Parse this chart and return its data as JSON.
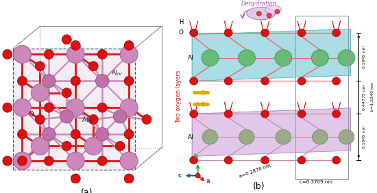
{
  "fig_width": 5.5,
  "fig_height": 2.82,
  "dpi": 100,
  "bg_color": "#ffffff",
  "panel_a": {
    "label": "(a)",
    "Al_color": "#cc88bb",
    "O_color": "#dd1111",
    "bond_red": "#dd2222",
    "bond_pink": "#cc88bb"
  },
  "panel_b": {
    "label": "(b)",
    "dehydration_label": "Dehydration",
    "dehydration_color": "#aa55bb",
    "two_oxygen_label": "Two oxygen layers",
    "two_oxygen_color": "#dd1111",
    "Al_top_color": "#66bb77",
    "Al_bot_color": "#99aa88",
    "O_color": "#dd1111",
    "layer_top_color": "#55bbcc",
    "layer_bot_color": "#bb88cc",
    "bond_top": "#ee6666",
    "bond_bot": "#cc88aa",
    "dim_b": "b=1.2240 nm",
    "dim_c": "c=0.3709 nm",
    "dim_a": "a=0.2876 nm",
    "dim_0165_top": "0.1645 nm",
    "dim_04775": "0.44775 nm",
    "dim_0165_bot": "0.1645 nm",
    "arrow_color": "#ddaa00",
    "axis_b_color": "#22aa22",
    "axis_c_color": "#1144cc",
    "axis_a_color": "#cc2222"
  }
}
